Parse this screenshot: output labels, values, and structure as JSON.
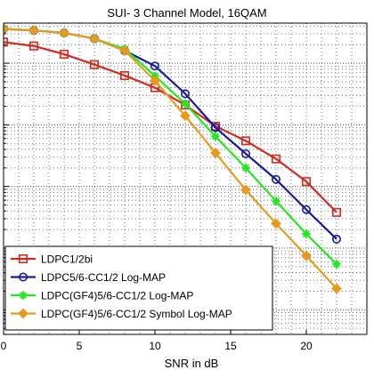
{
  "chart_data": {
    "type": "line",
    "title": "SUI- 3 Channel Model, 16QAM",
    "xlabel": "SNR in dB",
    "ylabel": "",
    "xlim": [
      0,
      24
    ],
    "ylim_log10": [
      -5.4,
      -0.35
    ],
    "log_y": true,
    "grid": true,
    "x_ticks": [
      0,
      5,
      10,
      15,
      20
    ],
    "legend_position": "bottom-left",
    "series": [
      {
        "name": "LDPC1/2bi",
        "color": "#d42a1e",
        "marker": "square",
        "x": [
          0,
          2,
          4,
          6,
          8,
          10,
          12,
          14,
          16,
          18,
          20,
          22
        ],
        "y": [
          0.22,
          0.19,
          0.14,
          0.095,
          0.063,
          0.04,
          0.021,
          0.0095,
          0.0055,
          0.0028,
          0.0012,
          0.00038
        ]
      },
      {
        "name": "LDPC5/6-CC1/2 Log-MAP",
        "color": "#1a1a9c",
        "marker": "circle",
        "x": [
          0,
          2,
          4,
          6,
          8,
          10,
          12,
          14,
          16,
          18,
          20,
          22
        ],
        "y": [
          0.36,
          0.34,
          0.31,
          0.25,
          0.16,
          0.09,
          0.032,
          0.009,
          0.0034,
          0.0013,
          0.00042,
          0.00014
        ]
      },
      {
        "name": "LDPC(GF4)5/6-CC1/2 Log-MAP",
        "color": "#22e81e",
        "marker": "star",
        "x": [
          0,
          2,
          4,
          6,
          8,
          10,
          12,
          14,
          16,
          18,
          20,
          22
        ],
        "y": [
          0.36,
          0.34,
          0.31,
          0.25,
          0.17,
          0.062,
          0.022,
          0.0065,
          0.002,
          0.00058,
          0.00017,
          5.5e-05
        ]
      },
      {
        "name": "LDPC(GF4)5/6-CC1/2 Symbol Log-MAP",
        "color": "#e89a1e",
        "marker": "diamond",
        "x": [
          0,
          2,
          4,
          6,
          8,
          10,
          12,
          14,
          16,
          18,
          20,
          22
        ],
        "y": [
          0.36,
          0.34,
          0.31,
          0.25,
          0.16,
          0.052,
          0.014,
          0.0035,
          0.00088,
          0.00025,
          7.5e-05,
          2.2e-05
        ]
      }
    ]
  }
}
